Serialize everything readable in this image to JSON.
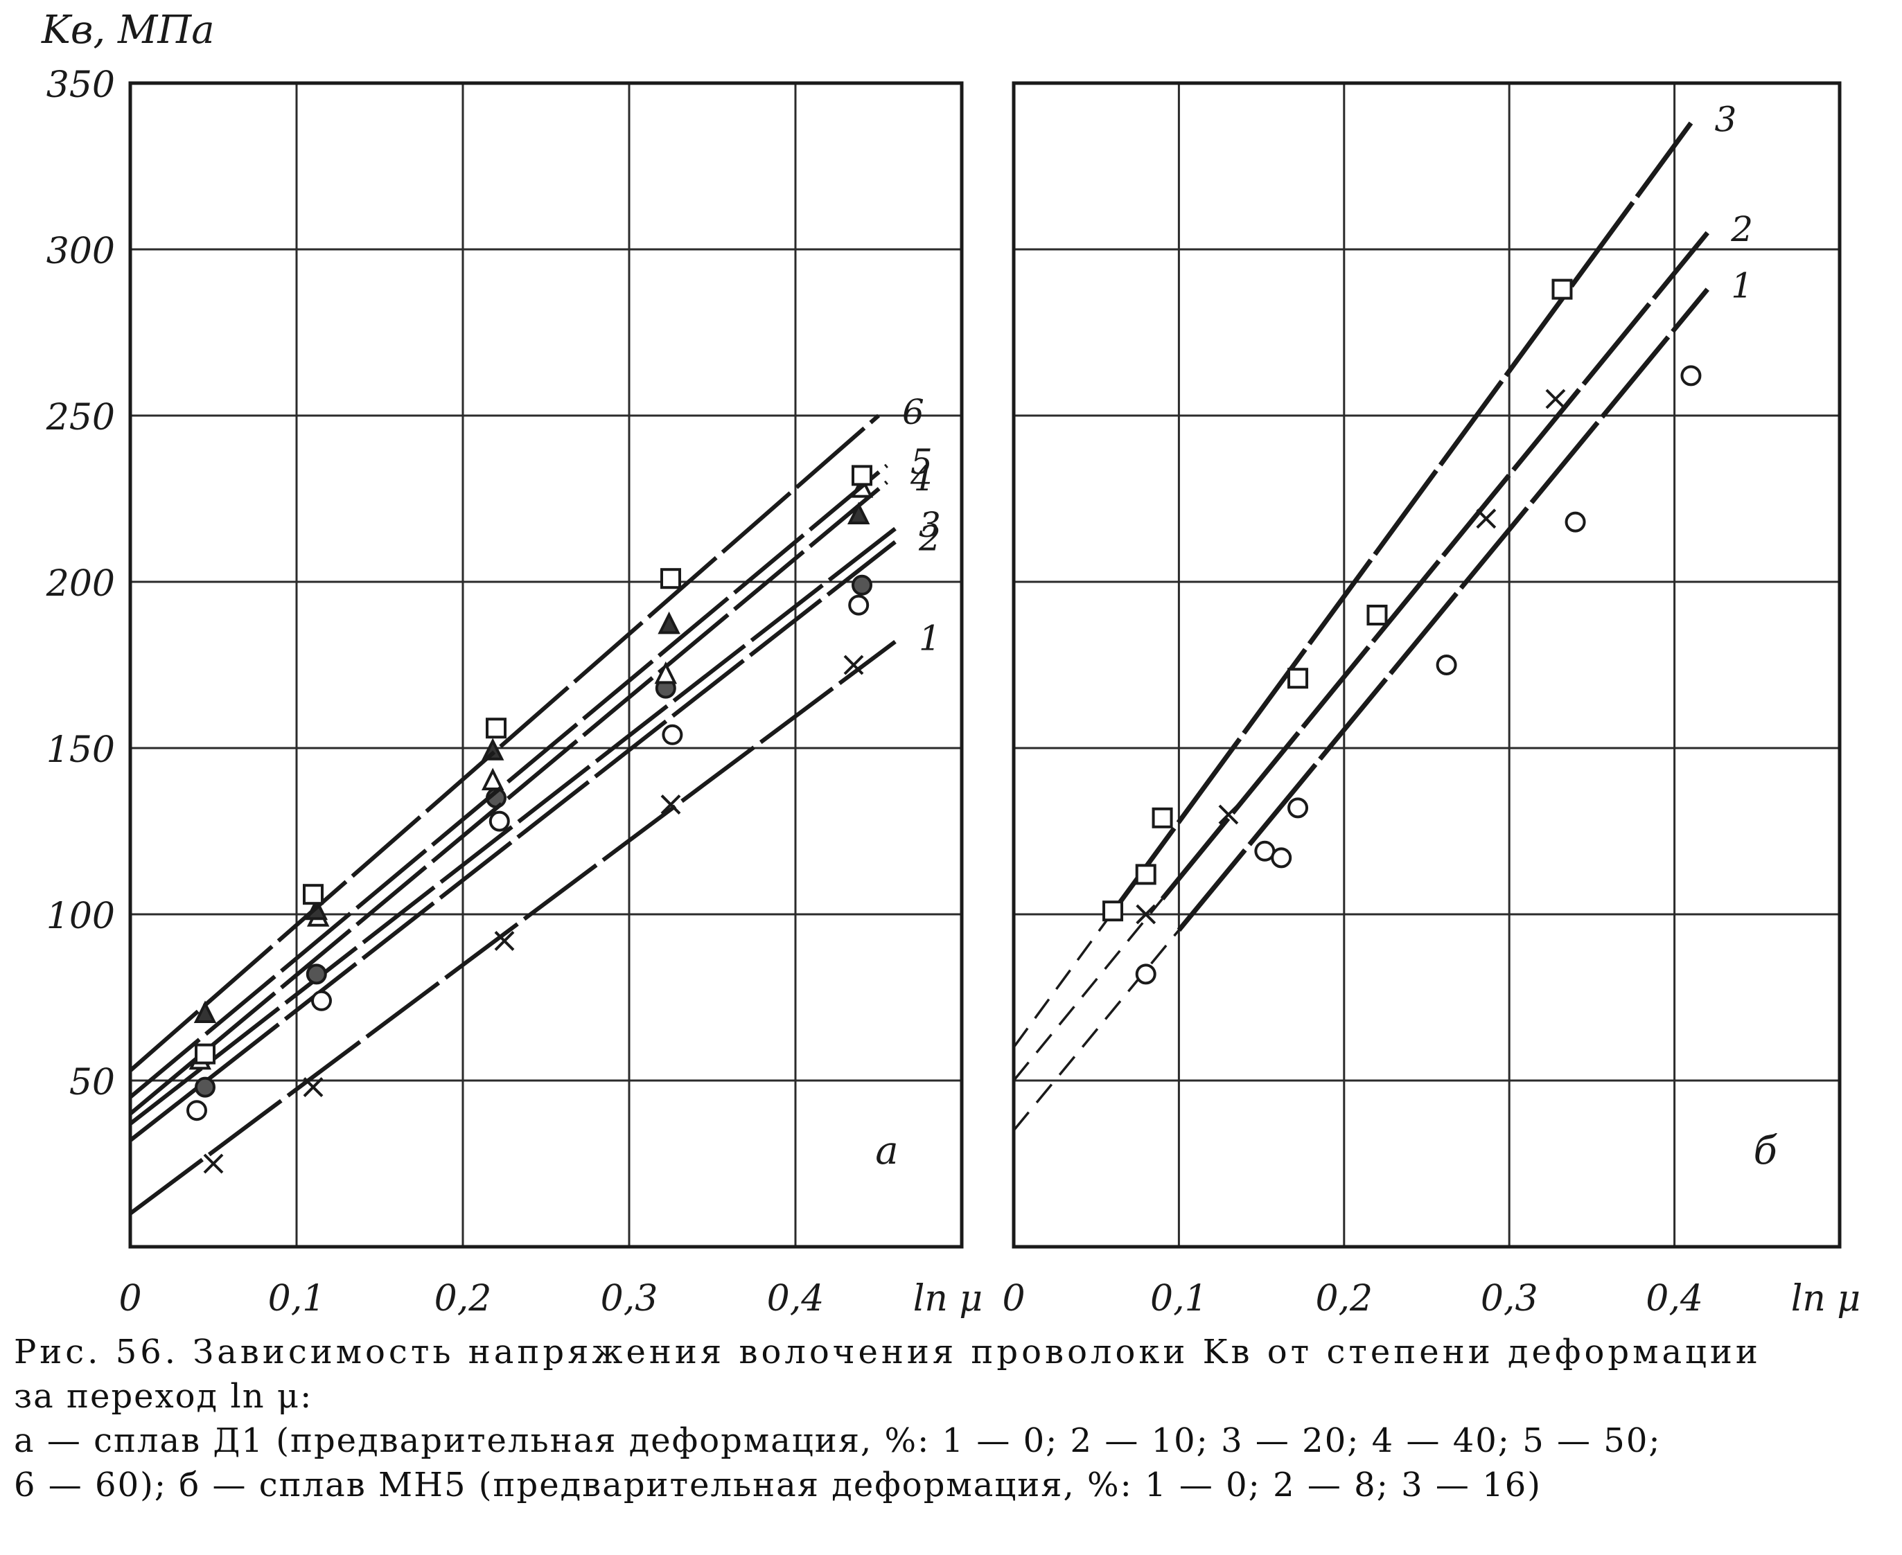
{
  "y_axis_label": "Kв, МПа",
  "charts": {
    "a": {
      "panel_letter": "а",
      "xlabel": "ln μ",
      "y_ticks": [
        {
          "v": 50,
          "t": "50"
        },
        {
          "v": 100,
          "t": "100"
        },
        {
          "v": 150,
          "t": "150"
        },
        {
          "v": 200,
          "t": "200"
        },
        {
          "v": 250,
          "t": "250"
        },
        {
          "v": 300,
          "t": "300"
        },
        {
          "v": 350,
          "t": "350"
        }
      ],
      "x_ticks": [
        {
          "v": 0,
          "t": "0"
        },
        {
          "v": 0.1,
          "t": "0,1"
        },
        {
          "v": 0.2,
          "t": "0,2"
        },
        {
          "v": 0.3,
          "t": "0,3"
        },
        {
          "v": 0.4,
          "t": "0,4"
        }
      ]
    },
    "b": {
      "panel_letter": "б",
      "xlabel": "ln μ",
      "x_ticks": [
        {
          "v": 0,
          "t": "0"
        },
        {
          "v": 0.1,
          "t": "0,1"
        },
        {
          "v": 0.2,
          "t": "0,2"
        },
        {
          "v": 0.3,
          "t": "0,3"
        },
        {
          "v": 0.4,
          "t": "0,4"
        }
      ]
    }
  },
  "chart_data": [
    {
      "type": "line",
      "panel": "а",
      "xlabel": "ln μ",
      "ylabel": "Kв, МПа",
      "xlim": [
        0,
        0.5
      ],
      "ylim": [
        0,
        350
      ],
      "grid": true,
      "series": [
        {
          "name": "1",
          "marker": "cross",
          "line": [
            [
              0,
              10
            ],
            [
              0.46,
              182
            ]
          ],
          "points": [
            [
              0.05,
              25
            ],
            [
              0.11,
              48
            ],
            [
              0.225,
              92
            ],
            [
              0.325,
              133
            ],
            [
              0.435,
              175
            ]
          ]
        },
        {
          "name": "2",
          "marker": "circle",
          "line": [
            [
              0,
              32
            ],
            [
              0.46,
              212
            ]
          ],
          "points": [
            [
              0.04,
              41
            ],
            [
              0.115,
              74
            ],
            [
              0.222,
              128
            ],
            [
              0.326,
              154
            ],
            [
              0.438,
              193
            ]
          ]
        },
        {
          "name": "3",
          "marker": "circle-filled",
          "line": [
            [
              0,
              37
            ],
            [
              0.46,
              216
            ]
          ],
          "points": [
            [
              0.045,
              48
            ],
            [
              0.112,
              82
            ],
            [
              0.22,
              135
            ],
            [
              0.322,
              168
            ],
            [
              0.44,
              199
            ]
          ]
        },
        {
          "name": "4",
          "marker": "triangle",
          "line": [
            [
              0,
              40
            ],
            [
              0.455,
              230
            ]
          ],
          "points": [
            [
              0.042,
              56
            ],
            [
              0.113,
              99
            ],
            [
              0.218,
              140
            ],
            [
              0.322,
              172
            ],
            [
              0.44,
              228
            ]
          ]
        },
        {
          "name": "5",
          "marker": "triangle-filled",
          "line": [
            [
              0,
              45
            ],
            [
              0.455,
              235
            ]
          ],
          "points": [
            [
              0.045,
              70
            ],
            [
              0.112,
              101
            ],
            [
              0.218,
              149
            ],
            [
              0.324,
              187
            ],
            [
              0.438,
              220
            ]
          ]
        },
        {
          "name": "6",
          "marker": "square",
          "line": [
            [
              0,
              53
            ],
            [
              0.45,
              250
            ]
          ],
          "points": [
            [
              0.045,
              58
            ],
            [
              0.11,
              106
            ],
            [
              0.22,
              156
            ],
            [
              0.325,
              201
            ],
            [
              0.44,
              232
            ]
          ]
        }
      ]
    },
    {
      "type": "line",
      "panel": "б",
      "xlabel": "ln μ",
      "ylabel": "Kв, МПа",
      "xlim": [
        0,
        0.5
      ],
      "ylim": [
        0,
        350
      ],
      "grid": true,
      "series": [
        {
          "name": "1",
          "marker": "circle",
          "line": [
            [
              0,
              35
            ],
            [
              0.42,
              288
            ]
          ],
          "solid_from": 0.1,
          "points": [
            [
              0.08,
              82
            ],
            [
              0.152,
              119
            ],
            [
              0.162,
              117
            ],
            [
              0.172,
              132
            ],
            [
              0.262,
              175
            ],
            [
              0.34,
              218
            ],
            [
              0.41,
              262
            ]
          ]
        },
        {
          "name": "2",
          "marker": "cross",
          "line": [
            [
              0,
              50
            ],
            [
              0.42,
              305
            ]
          ],
          "solid_from": 0.09,
          "points": [
            [
              0.08,
              100
            ],
            [
              0.13,
              130
            ],
            [
              0.286,
              219
            ],
            [
              0.328,
              255
            ]
          ]
        },
        {
          "name": "3",
          "marker": "square",
          "line": [
            [
              0,
              60
            ],
            [
              0.41,
              338
            ]
          ],
          "solid_from": 0.06,
          "points": [
            [
              0.06,
              101
            ],
            [
              0.08,
              112
            ],
            [
              0.09,
              129
            ],
            [
              0.172,
              171
            ],
            [
              0.22,
              190
            ],
            [
              0.332,
              288
            ]
          ]
        }
      ]
    }
  ],
  "caption": {
    "line1": "Рис. 56. Зависимость напряжения волочения проволоки Kв от степени деформации",
    "line2": "за переход ln μ:",
    "line3": "а — сплав Д1 (предварительная деформация, %: 1 — 0; 2 — 10; 3 — 20; 4 — 40; 5 — 50;",
    "line4": "6 — 60); б — сплав МН5 (предварительная деформация, %: 1 — 0; 2 — 8; 3 — 16)"
  }
}
